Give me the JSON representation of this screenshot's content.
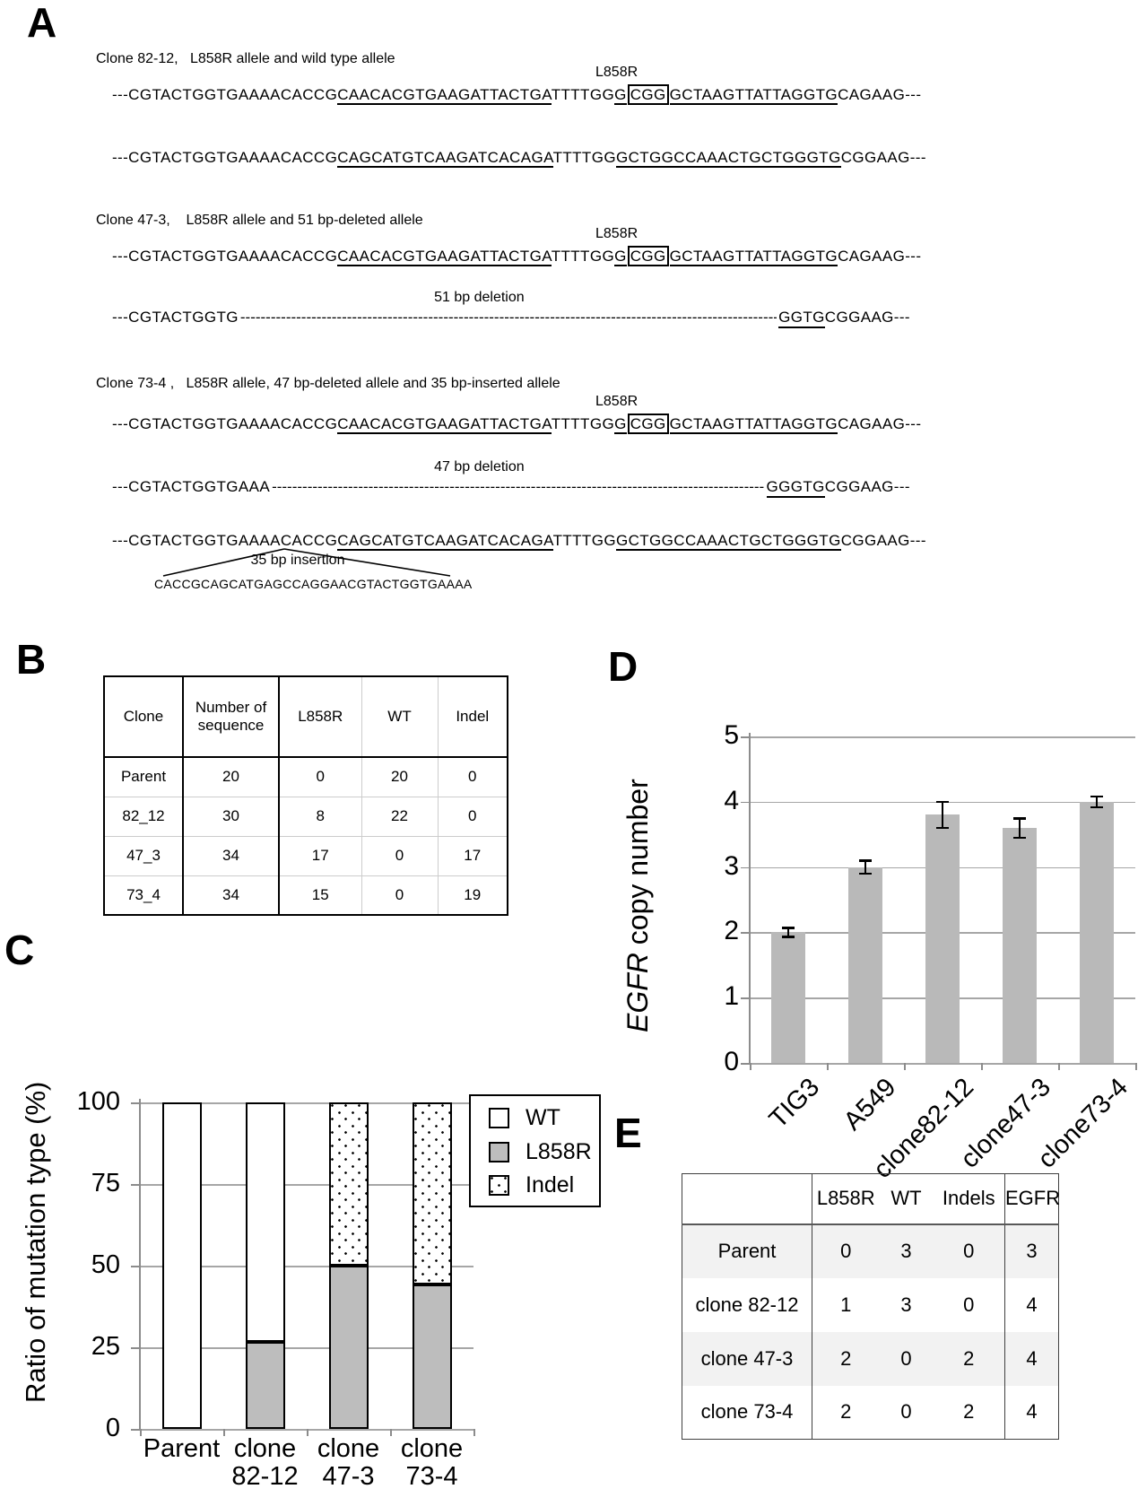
{
  "panel_a": {
    "label": "A",
    "l858r_tag": "L858R",
    "titles": [
      "Clone 82-12,   L858R allele and wild type allele",
      "Clone 47-3,    L858R allele and 51 bp-deleted allele",
      "Clone 73-4 ,   L858R allele, 47 bp-deleted allele and 35 bp-inserted allele"
    ],
    "alleles": {
      "l858r": [
        {
          "t": "---CGTACTGGTGAAAACACCG"
        },
        {
          "t": "CAACACGTGAAGATTACTGA",
          "u": true
        },
        {
          "t": "TTTTGG"
        },
        {
          "t": "G",
          "u": true
        },
        {
          "t": "CGG",
          "u": true,
          "box": true
        },
        {
          "t": "GCTAAGTTATTAGGTG",
          "u": true
        },
        {
          "t": "CAGAAG---"
        }
      ],
      "wt": [
        {
          "t": "---CGTACTGGTGAAAACACCG"
        },
        {
          "t": "CAGCATGTCAAGATCACAGA",
          "u": true
        },
        {
          "t": "TTTTGG"
        },
        {
          "t": "GCTGGCCAAACTGCTGGGTG",
          "u": true
        },
        {
          "t": "CGGAAG---"
        }
      ]
    },
    "deletions": [
      {
        "label": "51 bp deletion",
        "left": "---CGTACTGGTG",
        "right": [
          {
            "t": "GGTG",
            "u": true
          },
          {
            "t": "CGGAAG---"
          }
        ]
      },
      {
        "label": "47 bp deletion",
        "left": "---CGTACTGGTGAAA",
        "right": [
          {
            "t": "GGGTG",
            "u": true
          },
          {
            "t": "CGGAAG---"
          }
        ]
      }
    ],
    "insertion": {
      "label": "35 bp insertion",
      "seq": "CACCGCAGCATGAGCCAGGAACGTACTGGTGAAAA"
    }
  },
  "panel_b": {
    "label": "B",
    "table": {
      "headers": [
        "Clone",
        "Number of sequence",
        "L858R",
        "WT",
        "Indel"
      ],
      "rows": [
        [
          "Parent",
          "20",
          "0",
          "20",
          "0"
        ],
        [
          "82_12",
          "30",
          "8",
          "22",
          "0"
        ],
        [
          "47_3",
          "34",
          "17",
          "0",
          "17"
        ],
        [
          "73_4",
          "34",
          "15",
          "0",
          "19"
        ]
      ]
    }
  },
  "panel_c": {
    "label": "C"
  },
  "panel_d": {
    "label": "D"
  },
  "panel_e": {
    "label": "E",
    "table": {
      "headers": [
        "",
        "L858R",
        "WT",
        "Indels",
        "EGFR"
      ],
      "rows": [
        [
          "Parent",
          "0",
          "3",
          "0",
          "3"
        ],
        [
          "clone 82-12",
          "1",
          "3",
          "0",
          "4"
        ],
        [
          "clone 47-3",
          "2",
          "0",
          "2",
          "4"
        ],
        [
          "clone 73-4",
          "2",
          "0",
          "2",
          "4"
        ]
      ]
    }
  },
  "chart_data": [
    {
      "id": "mutation_ratio",
      "type": "bar",
      "stacked": true,
      "ylabel": "Ratio of mutation type (%)",
      "ylim": [
        0,
        100
      ],
      "yticks": [
        0,
        25,
        50,
        75,
        100
      ],
      "categories": [
        "Parent",
        "clone 82-12",
        "clone 47-3",
        "clone 73-4"
      ],
      "category_lines": [
        [
          "Parent"
        ],
        [
          "clone",
          "82-12"
        ],
        [
          "clone",
          "47-3"
        ],
        [
          "clone",
          "73-4"
        ]
      ],
      "series": [
        {
          "name": "L858R",
          "style": "gray",
          "values": [
            0,
            26.7,
            50,
            44.1
          ]
        },
        {
          "name": "WT",
          "style": "white",
          "values": [
            100,
            73.3,
            0,
            0
          ]
        },
        {
          "name": "Indel",
          "style": "dotted",
          "values": [
            0,
            0,
            50,
            55.9
          ]
        }
      ],
      "legend": [
        "WT",
        "L858R",
        "Indel"
      ],
      "legend_position": "top-right",
      "grid": true,
      "bar_fill_gray": "#bdbdbd",
      "gridline_color": "#a6a6a6"
    },
    {
      "id": "egfr_copy_number",
      "type": "bar",
      "stacked": false,
      "ylabel_italic": "EGFR",
      "ylabel_rest": " copy number",
      "ylim": [
        0,
        5
      ],
      "yticks": [
        0,
        1,
        2,
        3,
        4,
        5
      ],
      "categories": [
        "TIG3",
        "A549",
        "clone82-12",
        "clone47-3",
        "clone73-4"
      ],
      "values": [
        2.0,
        3.0,
        3.8,
        3.6,
        4.0
      ],
      "errors": [
        0.07,
        0.1,
        0.2,
        0.15,
        0.08
      ],
      "grid": true,
      "bar_color": "#b9b9b9",
      "gridline_color": "#a6a6a6"
    }
  ]
}
